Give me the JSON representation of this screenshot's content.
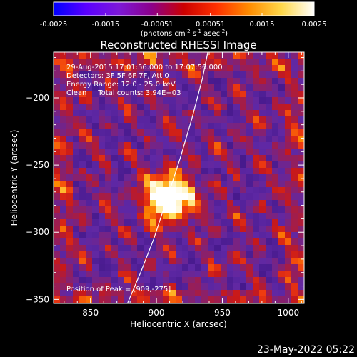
{
  "colorbar": {
    "tick_labels": [
      "-0.0025",
      "-0.0015",
      "-0.00051",
      "0.00051",
      "0.0015",
      "0.0025"
    ],
    "tick_values": [
      -0.0025,
      -0.0015,
      -0.00051,
      0.00051,
      0.0015,
      0.0025
    ],
    "range": [
      -0.0025,
      0.0025
    ],
    "unit_parts": [
      "(photons cm",
      "-2",
      " s",
      "-1",
      " asec",
      "-2",
      ")"
    ],
    "colors": [
      "#0000ff",
      "#5a00ff",
      "#7d18d8",
      "#8b008b",
      "#cc0000",
      "#ff3000",
      "#ff8c00",
      "#ffd84a",
      "#ffffff"
    ]
  },
  "footer": {
    "timestamp": "23-May-2022 05:22"
  },
  "chart_data": {
    "type": "heatmap",
    "title": "Reconstructed RHESSI Image",
    "xlabel": "Heliocentric X (arcsec)",
    "ylabel": "Heliocentric Y (arcsec)",
    "xlim": [
      822,
      1012
    ],
    "ylim": [
      -353,
      -166
    ],
    "xticks": [
      850,
      900,
      950,
      1000
    ],
    "yticks": [
      -200,
      -250,
      -300,
      -350
    ],
    "annotations": [
      "29-Aug-2015 17:01:56.000 to 17:07:56.000",
      "Detectors: 3F 5F 6F 7F, Att 0",
      "Energy Range: 12.0 - 25.0 keV",
      "Clean     Total counts: 3.94E+03"
    ],
    "peak_label": "Position of Peak = [909,-275]",
    "peak": [
      909,
      -275
    ],
    "peak_value": 0.0025,
    "limb": [
      [
        878,
        -353
      ],
      [
        888,
        -330
      ],
      [
        898,
        -305
      ],
      [
        908,
        -275
      ],
      [
        918,
        -245
      ],
      [
        927,
        -215
      ],
      [
        935,
        -185
      ],
      [
        939,
        -166
      ]
    ]
  }
}
